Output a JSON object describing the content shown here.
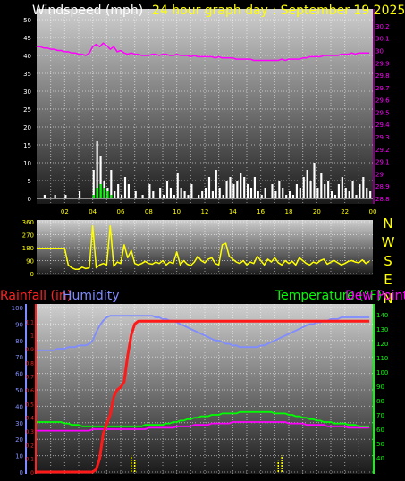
{
  "chart_data": [
    {
      "id": "wind",
      "type": "bar",
      "title": "Windspeed (mph)",
      "title_suffix": "24 hour graph day : September 19 2025",
      "x_ticks": [
        "02",
        "04",
        "06",
        "08",
        "10",
        "12",
        "14",
        "16",
        "18",
        "20",
        "22",
        "00"
      ],
      "x": [
        0,
        0.25,
        0.5,
        0.75,
        1,
        1.25,
        1.5,
        1.75,
        2,
        2.25,
        2.5,
        2.75,
        3,
        3.25,
        3.5,
        3.75,
        4,
        4.25,
        4.5,
        4.75,
        5,
        5.25,
        5.5,
        5.75,
        6,
        6.25,
        6.5,
        6.75,
        7,
        7.25,
        7.5,
        7.75,
        8,
        8.25,
        8.5,
        8.75,
        9,
        9.25,
        9.5,
        9.75,
        10,
        10.25,
        10.5,
        10.75,
        11,
        11.25,
        11.5,
        11.75,
        12,
        12.25,
        12.5,
        12.75,
        13,
        13.25,
        13.5,
        13.75,
        14,
        14.25,
        14.5,
        14.75,
        15,
        15.25,
        15.5,
        15.75,
        16,
        16.25,
        16.5,
        16.75,
        17,
        17.25,
        17.5,
        17.75,
        18,
        18.25,
        18.5,
        18.75,
        19,
        19.25,
        19.5,
        19.75,
        20,
        20.25,
        20.5,
        20.75,
        21,
        21.25,
        21.5,
        21.75,
        22,
        22.25,
        22.5,
        22.75,
        23,
        23.25,
        23.5,
        23.75
      ],
      "gust": [
        0,
        0,
        1,
        0,
        0,
        1,
        0,
        0,
        1,
        0,
        0,
        0,
        2,
        0,
        0,
        0,
        8,
        16,
        12,
        5,
        3,
        8,
        2,
        4,
        1,
        6,
        4,
        0,
        2,
        0,
        1,
        0,
        4,
        2,
        0,
        3,
        1,
        5,
        3,
        1,
        7,
        3,
        2,
        1,
        4,
        0,
        1,
        2,
        3,
        6,
        2,
        8,
        3,
        1,
        5,
        6,
        4,
        5,
        7,
        6,
        4,
        3,
        6,
        2,
        1,
        3,
        0,
        4,
        2,
        5,
        3,
        1,
        2,
        1,
        4,
        3,
        6,
        8,
        5,
        10,
        3,
        7,
        4,
        5,
        2,
        1,
        4,
        6,
        3,
        2,
        5,
        1,
        4,
        6,
        3,
        2
      ],
      "average": [
        0,
        0,
        0,
        0,
        0,
        0,
        0,
        0,
        0,
        0,
        0,
        0,
        0,
        0,
        0,
        0,
        1,
        3,
        4,
        3,
        2,
        1,
        0,
        0,
        0,
        0,
        0,
        0,
        0,
        0,
        0,
        0,
        0,
        0,
        0,
        0,
        0,
        0,
        0,
        0,
        0,
        0,
        0,
        0,
        0,
        0,
        0,
        0,
        0,
        0,
        0,
        0,
        0,
        0,
        0,
        0,
        0,
        0,
        0,
        0,
        0,
        0,
        0,
        0,
        0,
        0,
        0,
        0,
        0,
        0,
        0,
        0,
        0,
        0,
        0,
        0,
        0,
        0,
        0,
        0,
        0,
        0,
        0,
        0,
        0,
        0,
        0,
        0,
        0,
        0,
        0,
        0,
        0,
        0,
        0,
        0
      ],
      "pressure": [
        30.03,
        30.03,
        30.02,
        30.02,
        30.01,
        30.01,
        30.0,
        30.0,
        29.99,
        29.99,
        29.98,
        29.98,
        29.97,
        29.97,
        29.96,
        29.98,
        30.03,
        30.05,
        30.03,
        30.06,
        30.04,
        30.01,
        30.03,
        29.99,
        30.0,
        29.98,
        29.97,
        29.98,
        29.97,
        29.97,
        29.96,
        29.96,
        29.96,
        29.97,
        29.97,
        29.96,
        29.97,
        29.97,
        29.96,
        29.96,
        29.97,
        29.96,
        29.96,
        29.96,
        29.95,
        29.96,
        29.95,
        29.95,
        29.95,
        29.95,
        29.95,
        29.94,
        29.95,
        29.94,
        29.94,
        29.94,
        29.94,
        29.93,
        29.93,
        29.93,
        29.93,
        29.93,
        29.92,
        29.92,
        29.92,
        29.92,
        29.92,
        29.92,
        29.92,
        29.92,
        29.93,
        29.92,
        29.93,
        29.93,
        29.93,
        29.93,
        29.94,
        29.94,
        29.95,
        29.95,
        29.95,
        29.95,
        29.96,
        29.96,
        29.96,
        29.96,
        29.96,
        29.97,
        29.97,
        29.97,
        29.98,
        29.97,
        29.98,
        29.98,
        29.98,
        29.98
      ],
      "ylim": [
        0,
        50
      ],
      "yticks": [
        0,
        5,
        10,
        15,
        20,
        25,
        30,
        35,
        40,
        45,
        50
      ],
      "pressure_lim": [
        28.8,
        30.25
      ],
      "pressure_ticks": [
        "28.8",
        "28.9",
        "29",
        "29.1",
        "29.2",
        "29.3",
        "29.4",
        "29.5",
        "29.6",
        "29.7",
        "29.8",
        "29.9",
        "30",
        "30.1",
        "30.2"
      ],
      "colors": {
        "gust": "#ffffff",
        "average": "#00ff00",
        "pressure": "#ff00ff",
        "title": "#ffffff",
        "title_suffix": "#ffff00"
      }
    },
    {
      "id": "direction",
      "type": "line",
      "yticks": [
        0,
        90,
        180,
        270,
        360
      ],
      "ylim": [
        0,
        360
      ],
      "compass": [
        "N",
        "W",
        "S",
        "E",
        "N"
      ],
      "x": [
        0,
        0.25,
        0.5,
        0.75,
        1,
        1.25,
        1.5,
        1.75,
        2,
        2.25,
        2.5,
        2.75,
        3,
        3.25,
        3.5,
        3.75,
        4,
        4.25,
        4.5,
        4.75,
        5,
        5.25,
        5.5,
        5.75,
        6,
        6.25,
        6.5,
        6.75,
        7,
        7.25,
        7.5,
        7.75,
        8,
        8.25,
        8.5,
        8.75,
        9,
        9.25,
        9.5,
        9.75,
        10,
        10.25,
        10.5,
        10.75,
        11,
        11.25,
        11.5,
        11.75,
        12,
        12.25,
        12.5,
        12.75,
        13,
        13.25,
        13.5,
        13.75,
        14,
        14.25,
        14.5,
        14.75,
        15,
        15.25,
        15.5,
        15.75,
        16,
        16.25,
        16.5,
        16.75,
        17,
        17.25,
        17.5,
        17.75,
        18,
        18.25,
        18.5,
        18.75,
        19,
        19.25,
        19.5,
        19.75,
        20,
        20.25,
        20.5,
        20.75,
        21,
        21.25,
        21.5,
        21.75,
        22,
        22.25,
        22.5,
        22.75,
        23,
        23.25,
        23.5,
        23.75
      ],
      "values": [
        175,
        175,
        175,
        175,
        175,
        175,
        175,
        175,
        175,
        60,
        40,
        30,
        30,
        45,
        35,
        40,
        330,
        40,
        60,
        70,
        60,
        330,
        50,
        80,
        70,
        200,
        110,
        160,
        70,
        60,
        70,
        85,
        70,
        65,
        80,
        70,
        90,
        60,
        80,
        70,
        150,
        60,
        90,
        65,
        55,
        80,
        120,
        90,
        75,
        100,
        110,
        70,
        60,
        200,
        210,
        120,
        100,
        80,
        70,
        90,
        60,
        80,
        70,
        120,
        90,
        60,
        100,
        80,
        110,
        75,
        60,
        90,
        70,
        85,
        60,
        110,
        90,
        70,
        60,
        80,
        70,
        90,
        100,
        65,
        80,
        90,
        75,
        60,
        70,
        85,
        90,
        80,
        75,
        95,
        70,
        85
      ],
      "colors": {
        "line": "#ffff00",
        "compass": "#ffff00"
      }
    },
    {
      "id": "temphum",
      "type": "line",
      "title_left": "Rainfall (in)",
      "title_mid": "Humidity",
      "title_right": "Temperature (°F)",
      "title_far_right": "Dew Point",
      "x": [
        0,
        0.25,
        0.5,
        0.75,
        1,
        1.25,
        1.5,
        1.75,
        2,
        2.25,
        2.5,
        2.75,
        3,
        3.25,
        3.5,
        3.75,
        4,
        4.25,
        4.5,
        4.75,
        5,
        5.25,
        5.5,
        5.75,
        6,
        6.25,
        6.5,
        6.75,
        7,
        7.25,
        7.5,
        7.75,
        8,
        8.25,
        8.5,
        8.75,
        9,
        9.25,
        9.5,
        9.75,
        10,
        10.25,
        10.5,
        10.75,
        11,
        11.25,
        11.5,
        11.75,
        12,
        12.25,
        12.5,
        12.75,
        13,
        13.25,
        13.5,
        13.75,
        14,
        14.25,
        14.5,
        14.75,
        15,
        15.25,
        15.5,
        15.75,
        16,
        16.25,
        16.5,
        16.75,
        17,
        17.25,
        17.5,
        17.75,
        18,
        18.25,
        18.5,
        18.75,
        19,
        19.25,
        19.5,
        19.75,
        20,
        20.25,
        20.5,
        20.75,
        21,
        21.25,
        21.5,
        21.75,
        22,
        22.25,
        22.5,
        22.75,
        23,
        23.25,
        23.5,
        23.75
      ],
      "humidity": [
        74,
        74,
        74,
        74,
        74,
        74,
        75,
        75,
        75,
        76,
        76,
        76,
        77,
        77,
        77,
        78,
        80,
        85,
        89,
        92,
        94,
        95,
        95,
        95,
        95,
        95,
        95,
        95,
        95,
        95,
        95,
        95,
        95,
        95,
        94,
        94,
        93,
        93,
        92,
        92,
        91,
        90,
        89,
        88,
        87,
        86,
        85,
        84,
        83,
        82,
        81,
        80,
        80,
        79,
        78,
        78,
        77,
        77,
        76,
        76,
        76,
        76,
        76,
        76,
        77,
        77,
        78,
        79,
        80,
        81,
        82,
        83,
        84,
        85,
        86,
        87,
        88,
        89,
        90,
        90,
        91,
        91,
        92,
        92,
        93,
        93,
        93,
        94,
        94,
        94,
        94,
        94,
        94,
        94,
        94,
        94
      ],
      "temperature": [
        65,
        65,
        65,
        65,
        65,
        65,
        65,
        65,
        64,
        64,
        63,
        63,
        63,
        62,
        62,
        62,
        62,
        62,
        62,
        62,
        62,
        62,
        62,
        62,
        62,
        62,
        62,
        62,
        62,
        62,
        62,
        63,
        63,
        63,
        63,
        63,
        63,
        64,
        64,
        65,
        65,
        66,
        66,
        67,
        67,
        68,
        68,
        69,
        69,
        69,
        70,
        70,
        70,
        71,
        71,
        71,
        71,
        71,
        72,
        72,
        72,
        72,
        72,
        72,
        72,
        72,
        72,
        72,
        71,
        71,
        71,
        71,
        70,
        70,
        69,
        69,
        68,
        68,
        67,
        67,
        66,
        66,
        65,
        65,
        65,
        64,
        64,
        64,
        64,
        63,
        63,
        63,
        62,
        62,
        62,
        62
      ],
      "dewpoint": [
        59,
        59,
        59,
        59,
        59,
        59,
        59,
        59,
        59,
        59,
        59,
        59,
        59,
        59,
        59,
        59,
        60,
        60,
        60,
        60,
        60,
        60,
        60,
        60,
        60,
        60,
        60,
        60,
        60,
        60,
        60,
        60,
        61,
        61,
        61,
        61,
        61,
        61,
        61,
        61,
        62,
        62,
        62,
        62,
        62,
        63,
        63,
        63,
        63,
        63,
        64,
        64,
        64,
        64,
        64,
        64,
        65,
        65,
        65,
        65,
        65,
        65,
        65,
        65,
        65,
        65,
        65,
        65,
        65,
        65,
        65,
        65,
        64,
        64,
        64,
        64,
        64,
        63,
        63,
        63,
        63,
        63,
        63,
        62,
        62,
        62,
        62,
        62,
        62,
        61,
        61,
        61,
        61,
        61,
        61,
        61
      ],
      "rainfall": [
        0,
        0,
        0,
        0,
        0,
        0,
        0,
        0,
        0,
        0,
        0,
        0,
        0,
        0,
        0,
        0,
        0,
        0.02,
        0.1,
        0.28,
        0.35,
        0.42,
        0.55,
        0.6,
        0.62,
        0.66,
        0.85,
        1.0,
        1.08,
        1.1,
        1.1,
        1.1,
        1.1,
        1.1,
        1.1,
        1.1,
        1.1,
        1.1,
        1.1,
        1.1,
        1.1,
        1.1,
        1.1,
        1.1,
        1.1,
        1.1,
        1.1,
        1.1,
        1.1,
        1.1,
        1.1,
        1.1,
        1.1,
        1.1,
        1.1,
        1.1,
        1.1,
        1.1,
        1.1,
        1.1,
        1.1,
        1.1,
        1.1,
        1.1,
        1.1,
        1.1,
        1.1,
        1.1,
        1.1,
        1.1,
        1.1,
        1.1,
        1.1,
        1.1,
        1.1,
        1.1,
        1.1,
        1.1,
        1.1,
        1.1,
        1.1,
        1.1,
        1.1,
        1.1,
        1.1,
        1.1,
        1.1,
        1.1,
        1.1,
        1.1,
        1.1,
        1.1,
        1.1,
        1.1,
        1.1,
        1.1
      ],
      "rain_rate": [
        [
          6.75,
          0.12
        ],
        [
          7.0,
          0.09
        ],
        [
          17.25,
          0.08
        ],
        [
          17.5,
          0.12
        ]
      ],
      "humidity_lim": [
        0,
        100
      ],
      "humidity_ticks": [
        0,
        10,
        20,
        30,
        40,
        50,
        60,
        70,
        80,
        90,
        100
      ],
      "rain_lim": [
        0,
        1.2
      ],
      "rain_ticks": [
        "0",
        "0.1",
        "0.2",
        "0.3",
        "0.4",
        "0.5",
        "0.6",
        "0.7",
        "0.8",
        "0.9",
        "1",
        "1.1"
      ],
      "temp_lim": [
        30,
        145
      ],
      "temp_ticks": [
        40,
        50,
        60,
        70,
        80,
        90,
        100,
        110,
        120,
        130,
        140
      ],
      "colors": {
        "humidity": "#7f8cff",
        "temperature": "#00ff00",
        "dewpoint": "#ff00ff",
        "rainfall": "#ff1a1a",
        "rain_rate": "#ffff00",
        "rain_axis": "#ff2222",
        "humidity_axis": "#7f8cff",
        "temp_axis": "#00ff00"
      }
    }
  ]
}
